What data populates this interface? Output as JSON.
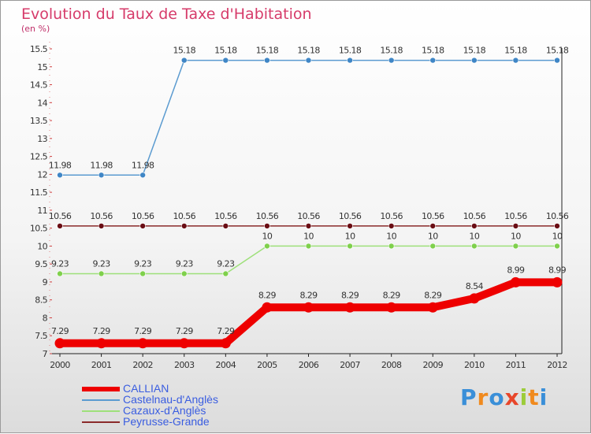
{
  "chart_data": {
    "type": "line",
    "title": "Evolution du Taux de Taxe d'Habitation",
    "ylabel": "(en %)",
    "x": [
      "2000",
      "2001",
      "2002",
      "2003",
      "2004",
      "2005",
      "2006",
      "2007",
      "2008",
      "2009",
      "2010",
      "2011",
      "2012"
    ],
    "ylim": [
      7,
      15.5
    ],
    "yticks": [
      "7",
      "7.5",
      "8",
      "8.5",
      "9",
      "9.5",
      "10",
      "10.5",
      "11",
      "11.5",
      "12",
      "12.5",
      "13",
      "13.5",
      "14",
      "14.5",
      "15",
      "15.5"
    ],
    "series": [
      {
        "name": "CALLIAN",
        "color": "#ee0000",
        "thick": true,
        "values": [
          7.29,
          7.29,
          7.29,
          7.29,
          7.29,
          8.29,
          8.29,
          8.29,
          8.29,
          8.29,
          8.54,
          8.99,
          8.99
        ],
        "labels": [
          "7.29",
          "7.29",
          "7.29",
          "7.29",
          "7.29",
          "8.29",
          "8.29",
          "8.29",
          "8.29",
          "8.29",
          "8.54",
          "8.99",
          "8.99"
        ]
      },
      {
        "name": "Castelnau-d'Anglès",
        "color": "#5b9bd0",
        "marker": "#3f86c6",
        "thick": false,
        "values": [
          11.98,
          11.98,
          11.98,
          15.18,
          15.18,
          15.18,
          15.18,
          15.18,
          15.18,
          15.18,
          15.18,
          15.18,
          15.18
        ],
        "labels": [
          "11.98",
          "11.98",
          "11.98",
          "15.18",
          "15.18",
          "15.18",
          "15.18",
          "15.18",
          "15.18",
          "15.18",
          "15.18",
          "15.18",
          "15.18"
        ]
      },
      {
        "name": "Cazaux-d'Anglès",
        "color": "#9ee07a",
        "marker": "#7fd04c",
        "thick": false,
        "values": [
          9.23,
          9.23,
          9.23,
          9.23,
          9.23,
          10,
          10,
          10,
          10,
          10,
          10,
          10,
          10
        ],
        "labels": [
          "9.23",
          "9.23",
          "9.23",
          "9.23",
          "9.23",
          "10",
          "10",
          "10",
          "10",
          "10",
          "10",
          "10",
          "10"
        ]
      },
      {
        "name": "Peyrusse-Grande",
        "color": "#8a2a2a",
        "marker": "#6a0d14",
        "thick": false,
        "values": [
          10.56,
          10.56,
          10.56,
          10.56,
          10.56,
          10.56,
          10.56,
          10.56,
          10.56,
          10.56,
          10.56,
          10.56,
          10.56
        ],
        "labels": [
          "10.56",
          "10.56",
          "10.56",
          "10.56",
          "10.56",
          "10.56",
          "10.56",
          "10.56",
          "10.56",
          "10.56",
          "10.56",
          "10.56",
          "10.56"
        ]
      }
    ],
    "legend": "bottom-left",
    "grid": false
  },
  "logo": {
    "text": "Proxiti"
  }
}
